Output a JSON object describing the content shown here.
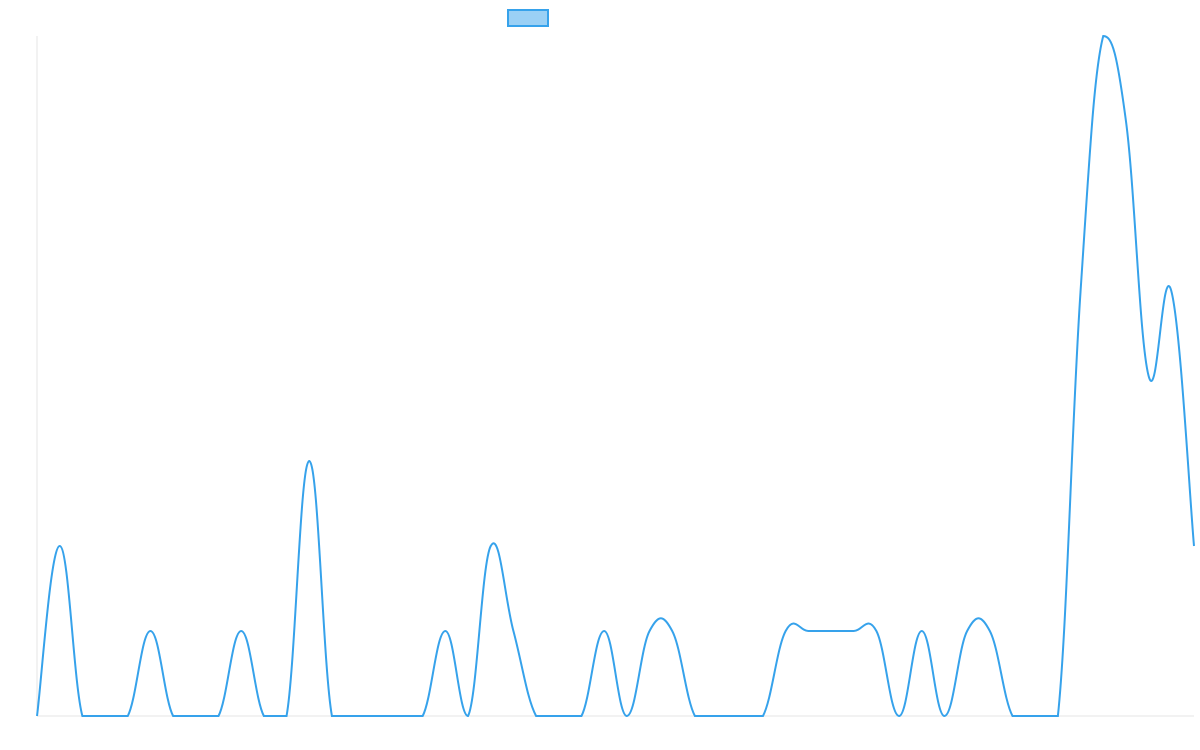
{
  "chart_data": {
    "type": "line",
    "series": [
      {
        "color": "#36a2eb",
        "fill": "#9ad0f5",
        "values": [
          0,
          2,
          0,
          0,
          0,
          1,
          0,
          0,
          0,
          1,
          0,
          0,
          3,
          0,
          0,
          0,
          0,
          0,
          1,
          0,
          2,
          1,
          0,
          0,
          0,
          1,
          0,
          1,
          1,
          0,
          0,
          0,
          0,
          1,
          1,
          1,
          1,
          1,
          0,
          1,
          0,
          1,
          1,
          0,
          0,
          0,
          5,
          8,
          7,
          4,
          5,
          2
        ]
      }
    ],
    "ylim": [
      0,
      8
    ]
  }
}
